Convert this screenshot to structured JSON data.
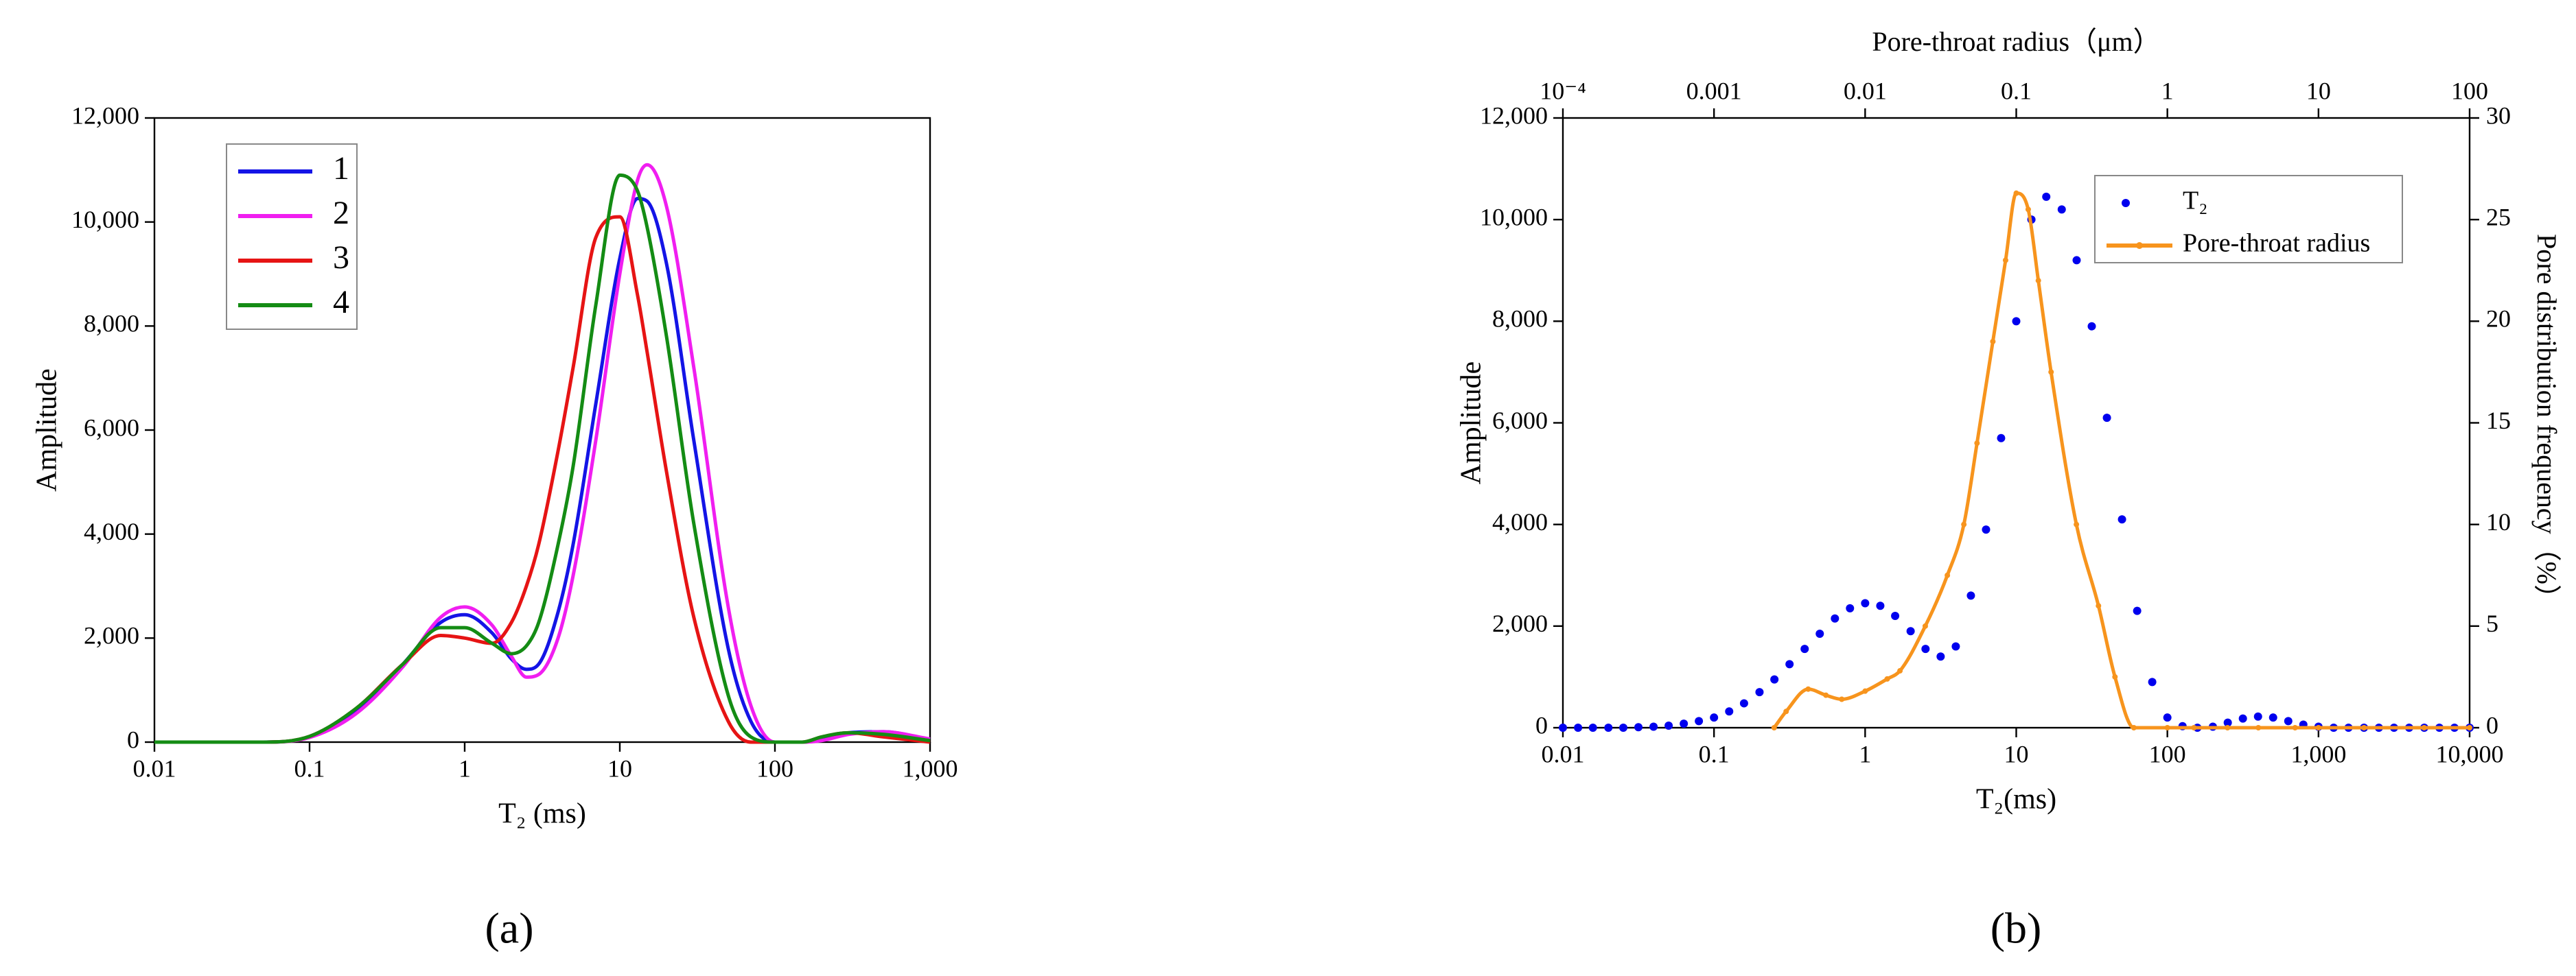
{
  "chart_data": [
    {
      "type": "line",
      "caption": "(a)",
      "xlabel": "T₂ (ms)",
      "ylabel": "Amplitude",
      "xscale": "log",
      "xlim": [
        0.01,
        1000
      ],
      "xticks": [
        0.01,
        0.1,
        1,
        10,
        100,
        {
          "value": 1000,
          "label": "1,000"
        }
      ],
      "ylim": [
        0,
        12000
      ],
      "yticks": [
        0,
        {
          "value": 2000,
          "label": "2,000"
        },
        {
          "value": 4000,
          "label": "4,000"
        },
        {
          "value": 6000,
          "label": "6,000"
        },
        {
          "value": 8000,
          "label": "8,000"
        },
        {
          "value": 10000,
          "label": "10,000"
        },
        {
          "value": 12000,
          "label": "12,000"
        }
      ],
      "legend": "upper-left",
      "x": [
        0.01,
        0.05,
        0.1,
        0.2,
        0.4,
        0.7,
        1,
        1.5,
        2,
        2.5,
        3,
        4,
        5,
        7,
        10,
        13,
        15,
        20,
        30,
        50,
        70,
        100,
        150,
        200,
        300,
        500,
        1000
      ],
      "series": [
        {
          "name": "1",
          "color": "#1414e6",
          "values": [
            0,
            0,
            100,
            600,
            1500,
            2300,
            2450,
            2100,
            1600,
            1400,
            1500,
            2500,
            3800,
            6500,
            9300,
            10450,
            10400,
            9200,
            5800,
            1800,
            400,
            0,
            0,
            50,
            180,
            200,
            50
          ]
        },
        {
          "name": "2",
          "color": "#f01ef0",
          "values": [
            0,
            0,
            90,
            550,
            1450,
            2400,
            2600,
            2250,
            1650,
            1250,
            1300,
            2000,
            3200,
            5800,
            9000,
            10800,
            11100,
            10300,
            7200,
            2600,
            700,
            0,
            0,
            30,
            150,
            200,
            60
          ]
        },
        {
          "name": "3",
          "color": "#e61414",
          "values": [
            0,
            0,
            110,
            650,
            1500,
            2050,
            2000,
            1900,
            2300,
            3000,
            3800,
            5600,
            7200,
            9700,
            10100,
            8600,
            7500,
            5200,
            2400,
            400,
            0,
            0,
            0,
            100,
            180,
            100,
            0
          ]
        },
        {
          "name": "4",
          "color": "#148c14",
          "values": [
            0,
            0,
            110,
            650,
            1500,
            2200,
            2200,
            1900,
            1700,
            1850,
            2300,
            3800,
            5300,
            8400,
            10900,
            10600,
            9900,
            7800,
            4200,
            900,
            100,
            0,
            0,
            100,
            180,
            150,
            30
          ]
        }
      ]
    },
    {
      "type": "combo",
      "caption": "(b)",
      "xlabel": "T₂(ms)",
      "ylabel": "Amplitude",
      "y2label": "Pore distribution frequency（%）",
      "x2label": "Pore-throat radius（μm）",
      "xscale": "log",
      "xlim": [
        0.01,
        10000
      ],
      "xticks": [
        0.01,
        0.1,
        1,
        10,
        100,
        {
          "value": 1000,
          "label": "1,000"
        },
        {
          "value": 10000,
          "label": "10,000"
        }
      ],
      "x2lim": [
        0.0001,
        100
      ],
      "x2ticks": [
        {
          "value": 0.0001,
          "label": "10⁻⁴"
        },
        0.001,
        0.01,
        0.1,
        1,
        10,
        100
      ],
      "ylim": [
        0,
        12000
      ],
      "yticks": [
        0,
        {
          "value": 2000,
          "label": "2,000"
        },
        {
          "value": 4000,
          "label": "4,000"
        },
        {
          "value": 6000,
          "label": "6,000"
        },
        {
          "value": 8000,
          "label": "8,000"
        },
        {
          "value": 10000,
          "label": "10,000"
        },
        {
          "value": 12000,
          "label": "12,000"
        }
      ],
      "y2lim": [
        0,
        30
      ],
      "y2ticks": [
        0,
        5,
        10,
        15,
        20,
        25,
        30
      ],
      "legend": "upper-right",
      "series": [
        {
          "name": "T₂",
          "type": "scatter",
          "color": "#0000ee",
          "x": [
            0.01,
            0.0126,
            0.0158,
            0.02,
            0.0251,
            0.0316,
            0.0398,
            0.0501,
            0.0631,
            0.0794,
            0.1,
            0.126,
            0.158,
            0.2,
            0.251,
            0.316,
            0.398,
            0.501,
            0.631,
            0.794,
            1,
            1.26,
            1.58,
            2,
            2.51,
            3.16,
            3.98,
            5.01,
            6.31,
            7.94,
            10,
            12.6,
            15.8,
            20,
            25.1,
            31.6,
            39.8,
            50.1,
            63.1,
            79.4,
            100,
            126,
            158,
            200,
            251,
            316,
            398,
            501,
            631,
            794,
            1000,
            1260,
            1580,
            2000,
            2510,
            3160,
            3980,
            5010,
            6310,
            7940,
            10000
          ],
          "values": [
            0,
            0,
            0,
            0,
            0,
            10,
            20,
            40,
            80,
            130,
            200,
            320,
            480,
            700,
            950,
            1250,
            1550,
            1850,
            2150,
            2350,
            2450,
            2400,
            2200,
            1900,
            1550,
            1400,
            1600,
            2600,
            3900,
            5700,
            8000,
            10000,
            10450,
            10200,
            9200,
            7900,
            6100,
            4100,
            2300,
            900,
            200,
            30,
            0,
            20,
            100,
            180,
            220,
            200,
            130,
            60,
            20,
            0,
            0,
            0,
            0,
            0,
            0,
            0,
            0,
            0,
            0
          ]
        },
        {
          "name": "Pore-throat radius",
          "type": "line",
          "axis": "y2",
          "color": "#f7941d",
          "x": [
            0.25,
            0.3,
            0.42,
            0.55,
            0.7,
            1,
            1.4,
            1.7,
            2.5,
            3.5,
            4.5,
            5.5,
            7,
            8.5,
            10,
            12,
            14,
            17,
            25,
            35,
            45,
            60,
            100,
            150,
            250,
            400,
            700,
            1000,
            2000,
            5000,
            10000
          ],
          "values": [
            0,
            0.8,
            1.9,
            1.6,
            1.4,
            1.8,
            2.4,
            2.8,
            5,
            7.5,
            10,
            14,
            19,
            23,
            26.3,
            25.5,
            22,
            17.5,
            10,
            6,
            2.5,
            0,
            0,
            0,
            0,
            0,
            0,
            0,
            0,
            0,
            0
          ]
        }
      ]
    }
  ]
}
